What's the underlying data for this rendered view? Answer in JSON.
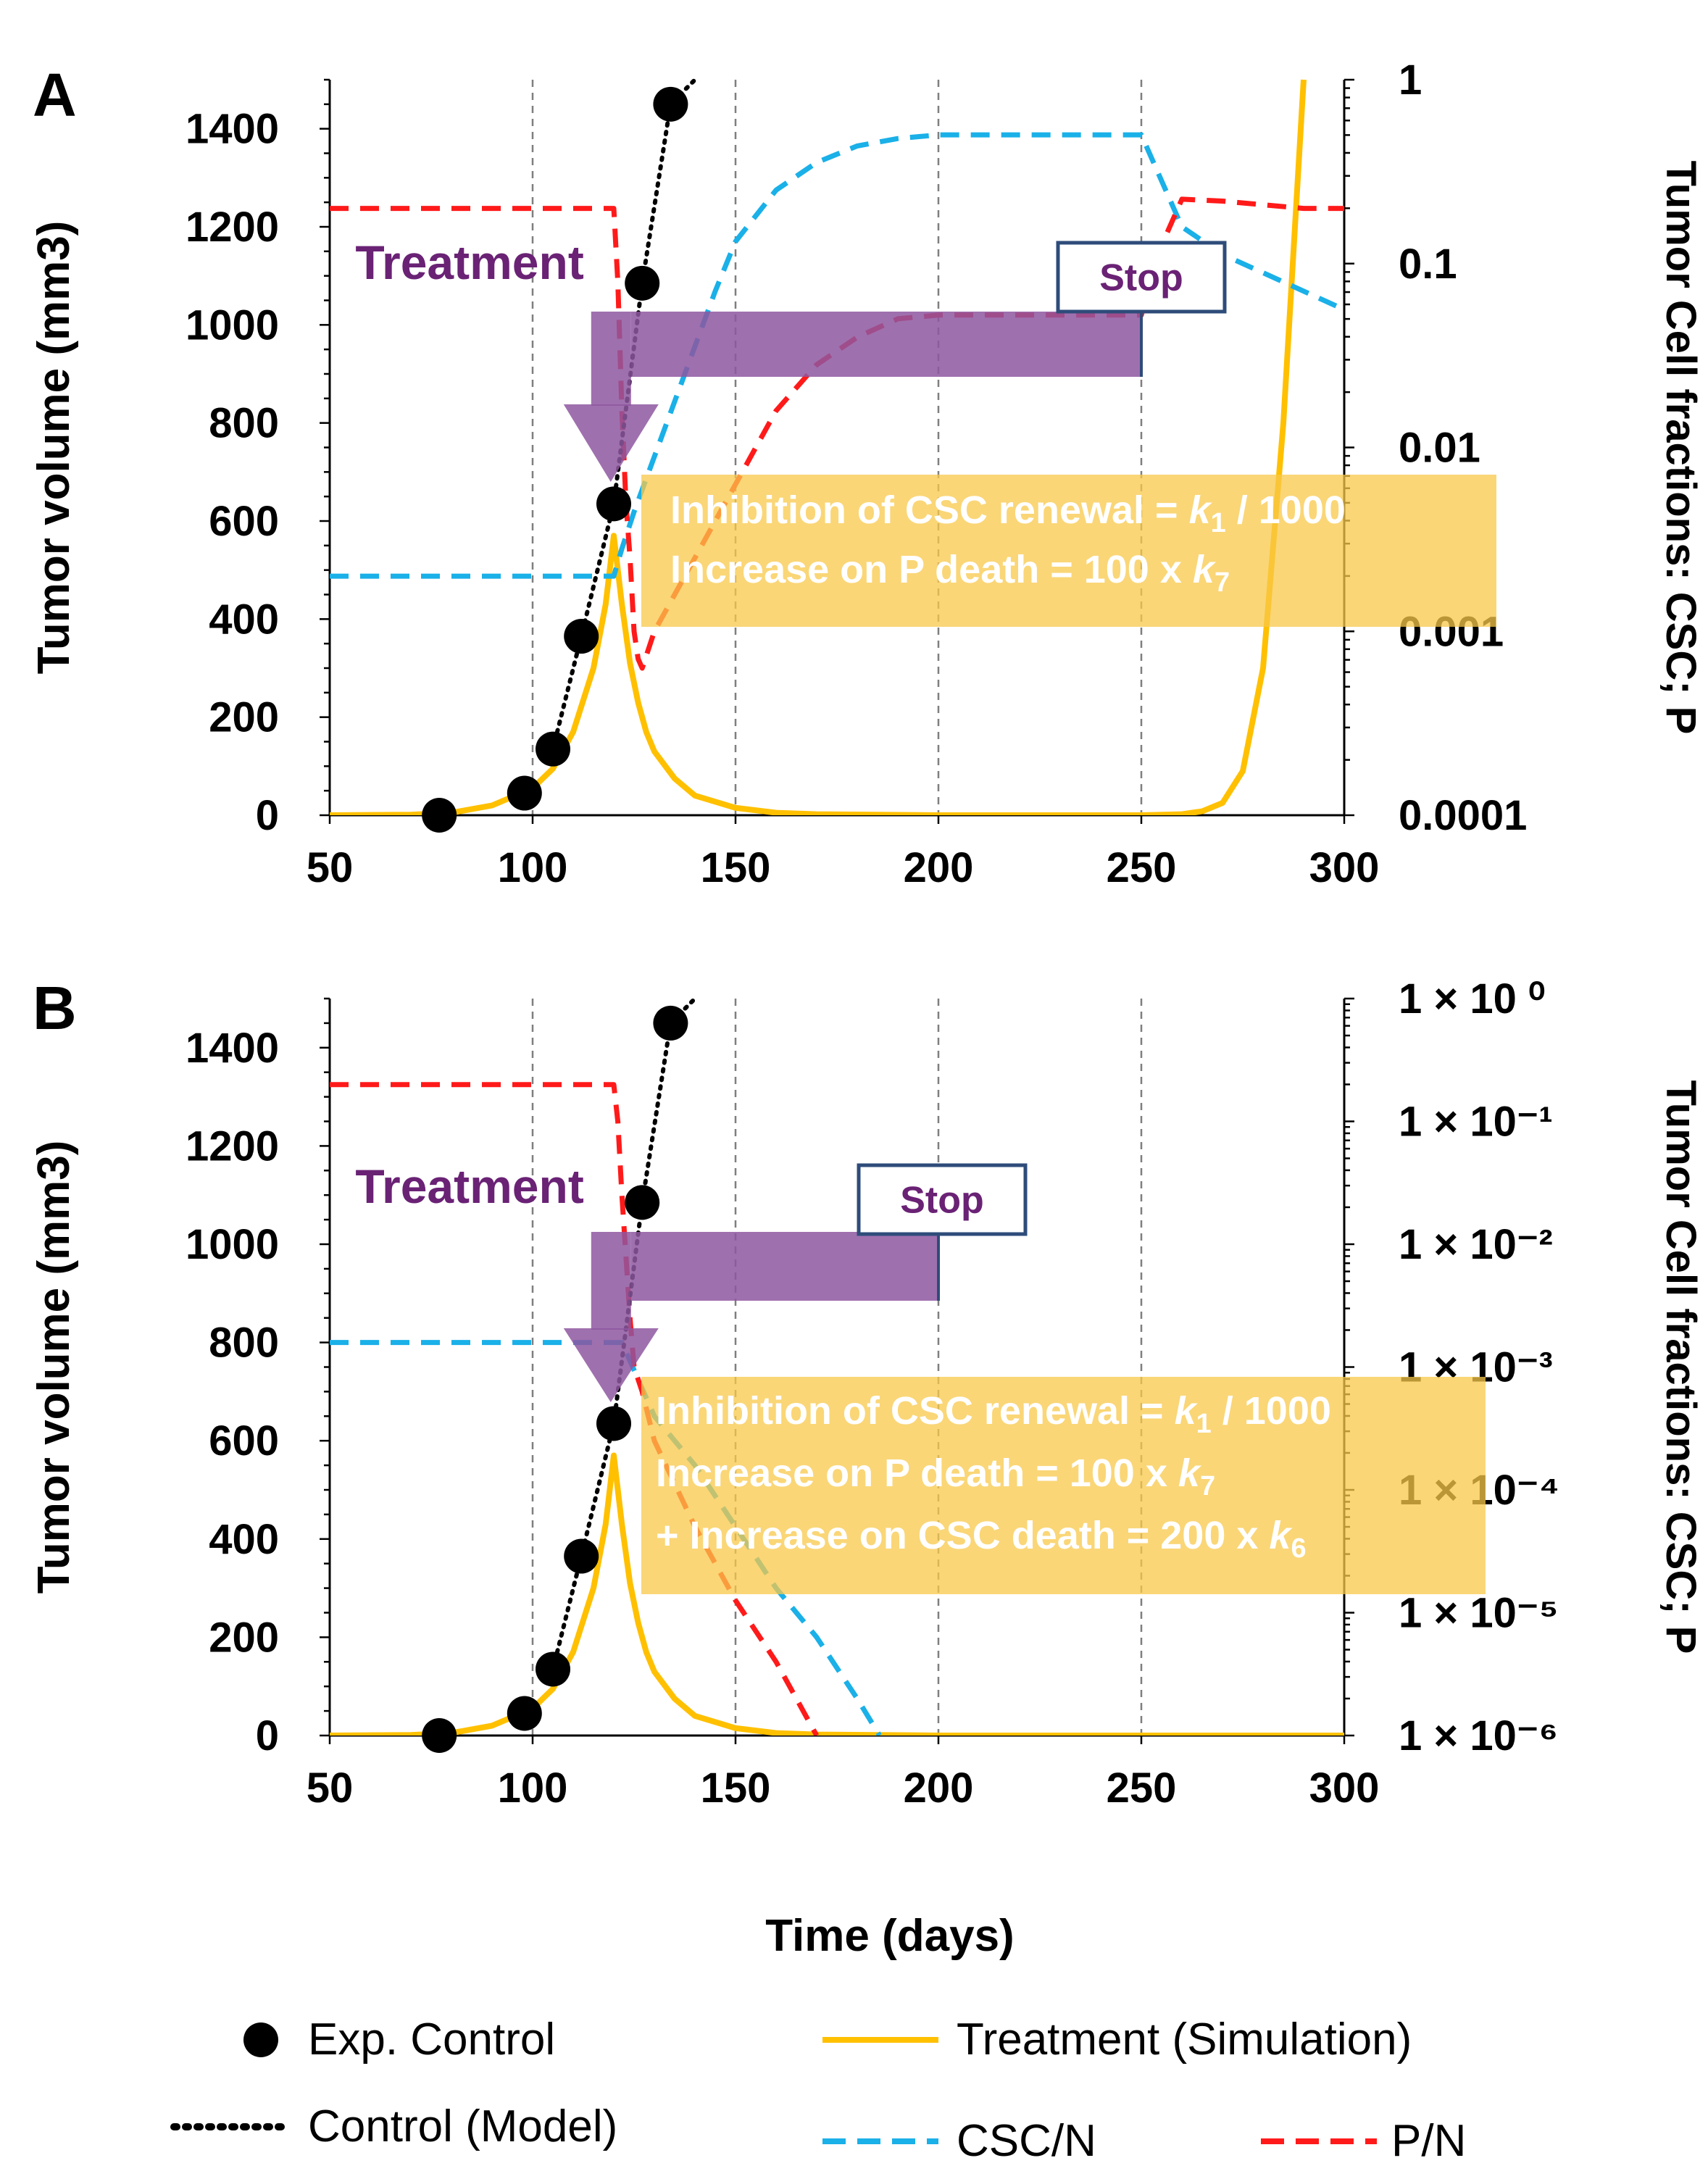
{
  "shared": {
    "xlabel": "Time (days)",
    "legend": [
      {
        "key": "exp",
        "label": "Exp. Control",
        "style": "marker",
        "color": "#000000"
      },
      {
        "key": "treat",
        "label": "Treatment (Simulation)",
        "style": "solid",
        "color": "#FFC000"
      },
      {
        "key": "ctrl",
        "label": "Control (Model)",
        "style": "dotted",
        "color": "#000000"
      },
      {
        "key": "csc",
        "label": "CSC/N",
        "style": "dashed",
        "color": "#1AB0E8"
      },
      {
        "key": "p",
        "label": "P/N",
        "style": "dashed",
        "color": "#FF1A1A"
      }
    ]
  },
  "colors": {
    "treatment": "#FFC000",
    "control": "#000000",
    "csc": "#1AB0E8",
    "p": "#FF1A1A",
    "arrow": "#8E57A0",
    "box": "#F8C849",
    "stop": "#2E4C7A",
    "stopText": "#6A2275"
  },
  "chart_data": [
    {
      "id": "A",
      "panel_label": "A",
      "type": "line",
      "xlim": [
        50,
        300
      ],
      "xticks": [
        "50",
        "100",
        "150",
        "200",
        "250",
        "300"
      ],
      "ylabel": "Tumor volume (mm3)",
      "ylim": [
        0,
        1500
      ],
      "yticks": [
        "0",
        "200",
        "400",
        "600",
        "800",
        "1000",
        "1200",
        "1400"
      ],
      "y2label": "Tumor Cell fractions:  CSC; P",
      "y2lim_log": [
        -4,
        0
      ],
      "y2ticks": [
        "0.0001",
        "0.001",
        "0.01",
        "0.1",
        "1"
      ],
      "vlines": [
        100,
        150,
        200,
        250
      ],
      "exp_control": {
        "x": [
          77,
          98,
          105,
          112,
          120,
          127,
          134
        ],
        "y": [
          0,
          45,
          135,
          365,
          635,
          1085,
          1450
        ]
      },
      "control_model": {
        "x": [
          105,
          112,
          120,
          127,
          134,
          140
        ],
        "y": [
          135,
          365,
          635,
          1085,
          1450,
          1500
        ]
      },
      "treatment": {
        "x": [
          50,
          70,
          80,
          90,
          100,
          105,
          110,
          115,
          118,
          120,
          122,
          124,
          126,
          128,
          130,
          135,
          140,
          150,
          160,
          170,
          200,
          250,
          260,
          265,
          270,
          275,
          280,
          285,
          290
        ],
        "y": [
          0,
          1,
          5,
          20,
          55,
          95,
          170,
          300,
          430,
          570,
          430,
          310,
          230,
          170,
          130,
          75,
          40,
          15,
          5,
          2,
          0,
          0,
          2,
          8,
          25,
          90,
          300,
          800,
          1500
        ]
      },
      "csc_log10": {
        "x": [
          50,
          120,
          122,
          125,
          130,
          135,
          140,
          145,
          150,
          160,
          170,
          180,
          190,
          200,
          210,
          250,
          255,
          260,
          270,
          280,
          290,
          300
        ],
        "y": [
          -2.7,
          -2.7,
          -2.55,
          -2.35,
          -2.05,
          -1.75,
          -1.45,
          -1.15,
          -0.88,
          -0.6,
          -0.45,
          -0.36,
          -0.32,
          -0.3,
          -0.3,
          -0.3,
          -0.55,
          -0.8,
          -0.95,
          -1.05,
          -1.15,
          -1.25
        ]
      },
      "p_log10": {
        "x": [
          50,
          120,
          121,
          122,
          123,
          124,
          125,
          126,
          127,
          130,
          135,
          140,
          150,
          160,
          170,
          180,
          190,
          200,
          210,
          250,
          255,
          260,
          270,
          280,
          290,
          300
        ],
        "y": [
          -0.7,
          -0.7,
          -1.1,
          -1.8,
          -2.3,
          -2.6,
          -3.0,
          -3.15,
          -3.2,
          -3.0,
          -2.8,
          -2.6,
          -2.2,
          -1.8,
          -1.55,
          -1.4,
          -1.3,
          -1.28,
          -1.28,
          -1.28,
          -0.9,
          -0.65,
          -0.66,
          -0.68,
          -0.7,
          -0.7
        ]
      },
      "treatment_label": "Treatment",
      "stop_label": "Stop",
      "treatment_window": [
        118,
        250
      ],
      "annotation_lines": [
        {
          "a": "Inhibition of CSC renewal = ",
          "k": "k",
          "sub": "1",
          "b": " / 1000"
        },
        {
          "a": "Increase on P death = 100 x ",
          "k": "k",
          "sub": "7",
          "b": ""
        }
      ]
    },
    {
      "id": "B",
      "panel_label": "B",
      "type": "line",
      "xlim": [
        50,
        300
      ],
      "xticks": [
        "50",
        "100",
        "150",
        "200",
        "250",
        "300"
      ],
      "ylabel": "Tumor volume (mm3)",
      "ylim": [
        0,
        1500
      ],
      "yticks": [
        "0",
        "200",
        "400",
        "600",
        "800",
        "1000",
        "1200",
        "1400"
      ],
      "y2label": "Tumor Cell fractions:  CSC; P",
      "y2lim_log": [
        -6,
        0
      ],
      "y2ticks": [
        "1 × 10⁻⁶",
        "1 × 10⁻⁵",
        "1 × 10⁻⁴",
        "1 × 10⁻³",
        "1 × 10⁻²",
        "1 × 10⁻¹",
        "1 × 10  ⁰"
      ],
      "vlines": [
        100,
        150,
        200,
        250
      ],
      "exp_control": {
        "x": [
          77,
          98,
          105,
          112,
          120,
          127,
          134
        ],
        "y": [
          0,
          45,
          135,
          365,
          635,
          1085,
          1450
        ]
      },
      "control_model": {
        "x": [
          105,
          112,
          120,
          127,
          134,
          140
        ],
        "y": [
          135,
          365,
          635,
          1085,
          1450,
          1500
        ]
      },
      "treatment": {
        "x": [
          50,
          70,
          80,
          90,
          100,
          105,
          110,
          115,
          118,
          120,
          122,
          124,
          126,
          128,
          130,
          135,
          140,
          150,
          160,
          170,
          200,
          250,
          300
        ],
        "y": [
          0,
          1,
          5,
          20,
          55,
          95,
          170,
          300,
          430,
          570,
          430,
          310,
          230,
          170,
          130,
          75,
          40,
          15,
          5,
          2,
          0,
          0,
          0
        ]
      },
      "csc_log10": {
        "x": [
          50,
          122,
          130,
          140,
          150,
          160,
          170,
          180,
          185.5
        ],
        "y": [
          -2.8,
          -2.8,
          -3.4,
          -3.8,
          -4.3,
          -4.8,
          -5.2,
          -5.7,
          -6.0
        ]
      },
      "p_log10": {
        "x": [
          50,
          120,
          121,
          122,
          123,
          124,
          125,
          126,
          127,
          130,
          140,
          150,
          160,
          165,
          170
        ],
        "y": [
          -0.7,
          -0.7,
          -1.0,
          -1.6,
          -2.1,
          -2.6,
          -3.0,
          -3.1,
          -3.2,
          -3.6,
          -4.3,
          -4.9,
          -5.4,
          -5.7,
          -6.0
        ]
      },
      "treatment_label": "Treatment",
      "stop_label": "Stop",
      "treatment_window": [
        118,
        200
      ],
      "annotation_lines": [
        {
          "a": "Inhibition of CSC renewal = ",
          "k": "k",
          "sub": "1",
          "b": " / 1000"
        },
        {
          "a": "Increase on P death = 100 x ",
          "k": "k",
          "sub": "7",
          "b": ""
        },
        {
          "a": "+ Increase on CSC death = 200 x ",
          "k": "k",
          "sub": "6",
          "b": ""
        }
      ]
    }
  ]
}
